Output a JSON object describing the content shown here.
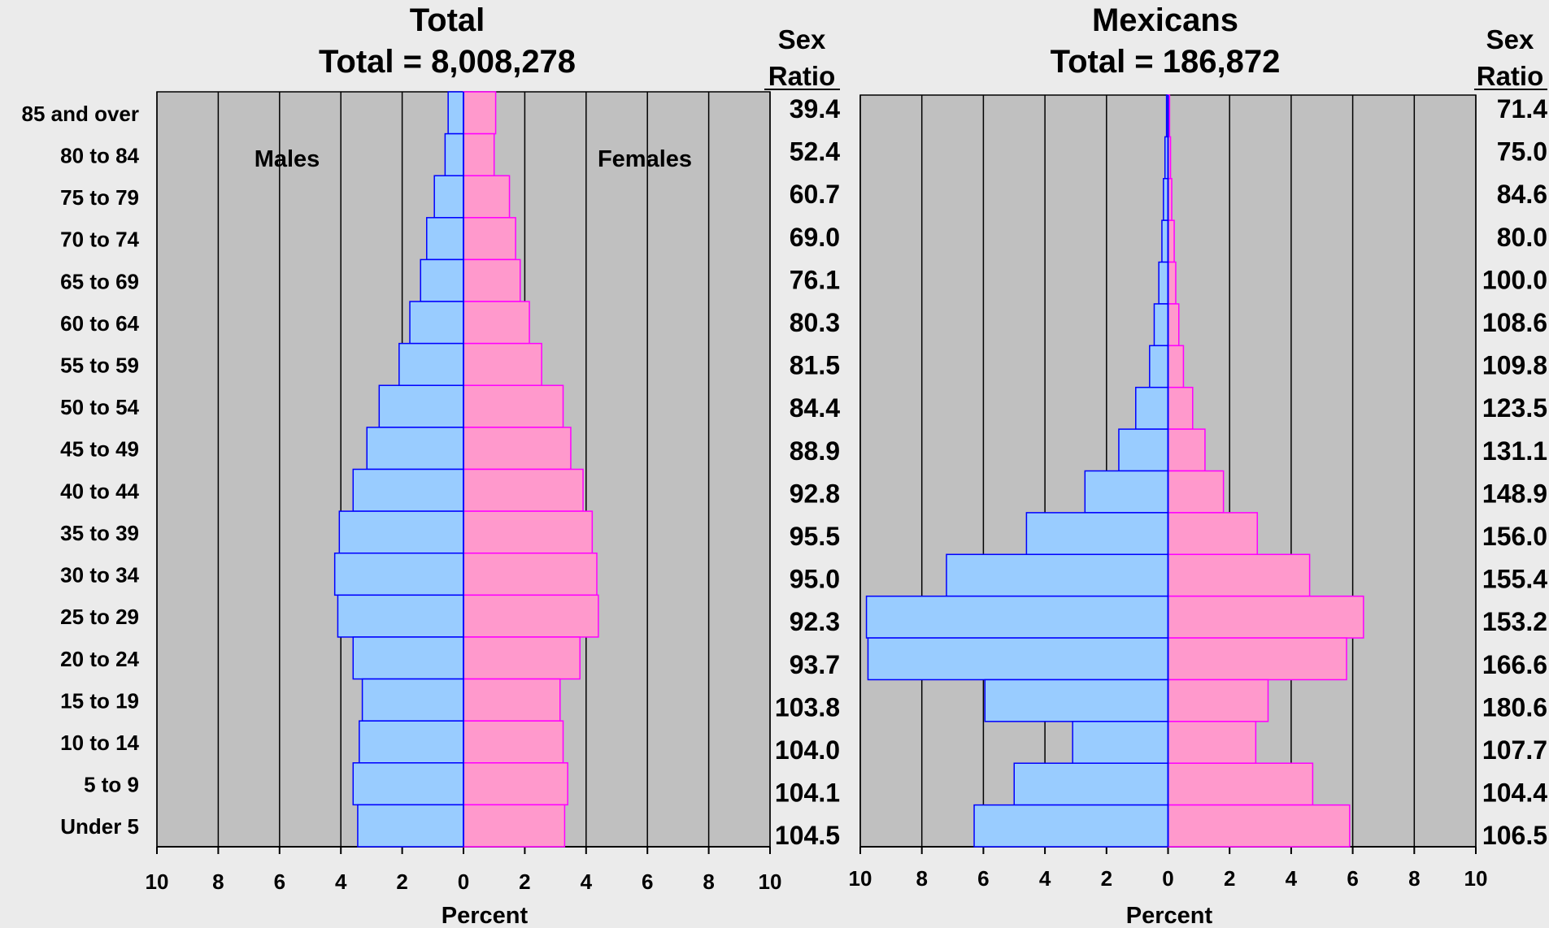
{
  "colors": {
    "background": "#ebebeb",
    "plot_bg": "#c0c0c0",
    "male_fill": "#99ccff",
    "male_stroke": "#0000ff",
    "female_fill": "#ff99cc",
    "female_stroke": "#ff00ff",
    "grid": "#000000"
  },
  "age_groups": [
    "85 and over",
    "80 to 84",
    "75 to 79",
    "70 to 74",
    "65 to 69",
    "60 to 64",
    "55 to 59",
    "50 to 54",
    "45 to 49",
    "40 to 44",
    "35 to 39",
    "30 to 34",
    "25 to 29",
    "20 to 24",
    "15 to 19",
    "10 to 14",
    "5 to 9",
    "Under 5"
  ],
  "sex_ratio_header": {
    "line1": "Sex",
    "line2": "Ratio"
  },
  "chart_data": [
    {
      "type": "bar",
      "orientation": "horizontal-pyramid",
      "title": "Total",
      "subtitle": "Total = 8,008,278",
      "xlabel": "Percent",
      "xlim": [
        -10,
        10
      ],
      "x_ticks": [
        "10",
        "8",
        "6",
        "4",
        "2",
        "0",
        "2",
        "4",
        "6",
        "8",
        "10"
      ],
      "annotations": {
        "left": "Males",
        "right": "Females"
      },
      "categories": [
        "85 and over",
        "80 to 84",
        "75 to 79",
        "70 to 74",
        "65 to 69",
        "60 to 64",
        "55 to 59",
        "50 to 54",
        "45 to 49",
        "40 to 44",
        "35 to 39",
        "30 to 34",
        "25 to 29",
        "20 to 24",
        "15 to 19",
        "10 to 14",
        "5 to 9",
        "Under 5"
      ],
      "series": [
        {
          "name": "Males",
          "values": [
            0.5,
            0.6,
            0.95,
            1.2,
            1.4,
            1.75,
            2.1,
            2.75,
            3.15,
            3.6,
            4.05,
            4.2,
            4.1,
            3.6,
            3.3,
            3.4,
            3.6,
            3.45
          ]
        },
        {
          "name": "Females",
          "values": [
            1.05,
            1.0,
            1.5,
            1.7,
            1.85,
            2.15,
            2.55,
            3.25,
            3.5,
            3.9,
            4.2,
            4.35,
            4.4,
            3.8,
            3.15,
            3.25,
            3.4,
            3.3
          ]
        }
      ],
      "sex_ratio": [
        "39.4",
        "52.4",
        "60.7",
        "69.0",
        "76.1",
        "80.3",
        "81.5",
        "84.4",
        "88.9",
        "92.8",
        "95.5",
        "95.0",
        "92.3",
        "93.7",
        "103.8",
        "104.0",
        "104.1",
        "104.5"
      ],
      "grid": true
    },
    {
      "type": "bar",
      "orientation": "horizontal-pyramid",
      "title": "Mexicans",
      "subtitle": "Total = 186,872",
      "xlabel": "Percent",
      "xlim": [
        -10,
        10
      ],
      "x_ticks": [
        "10",
        "8",
        "6",
        "4",
        "2",
        "0",
        "2",
        "4",
        "6",
        "8",
        "10"
      ],
      "categories": [
        "85 and over",
        "80 to 84",
        "75 to 79",
        "70 to 74",
        "65 to 69",
        "60 to 64",
        "55 to 59",
        "50 to 54",
        "45 to 49",
        "40 to 44",
        "35 to 39",
        "30 to 34",
        "25 to 29",
        "20 to 24",
        "15 to 19",
        "10 to 14",
        "5 to 9",
        "Under 5"
      ],
      "series": [
        {
          "name": "Males",
          "values": [
            0.05,
            0.1,
            0.15,
            0.2,
            0.3,
            0.45,
            0.6,
            1.05,
            1.6,
            2.7,
            4.6,
            7.2,
            9.8,
            9.75,
            5.95,
            3.1,
            5.0,
            6.3
          ]
        },
        {
          "name": "Females",
          "values": [
            0.05,
            0.08,
            0.12,
            0.2,
            0.25,
            0.35,
            0.5,
            0.8,
            1.2,
            1.8,
            2.9,
            4.6,
            6.35,
            5.8,
            3.25,
            2.85,
            4.7,
            5.9
          ]
        }
      ],
      "sex_ratio": [
        "71.4",
        "75.0",
        "84.6",
        "80.0",
        "100.0",
        "108.6",
        "109.8",
        "123.5",
        "131.1",
        "148.9",
        "156.0",
        "155.4",
        "153.2",
        "166.6",
        "180.6",
        "107.7",
        "104.4",
        "106.5"
      ],
      "grid": true
    }
  ]
}
